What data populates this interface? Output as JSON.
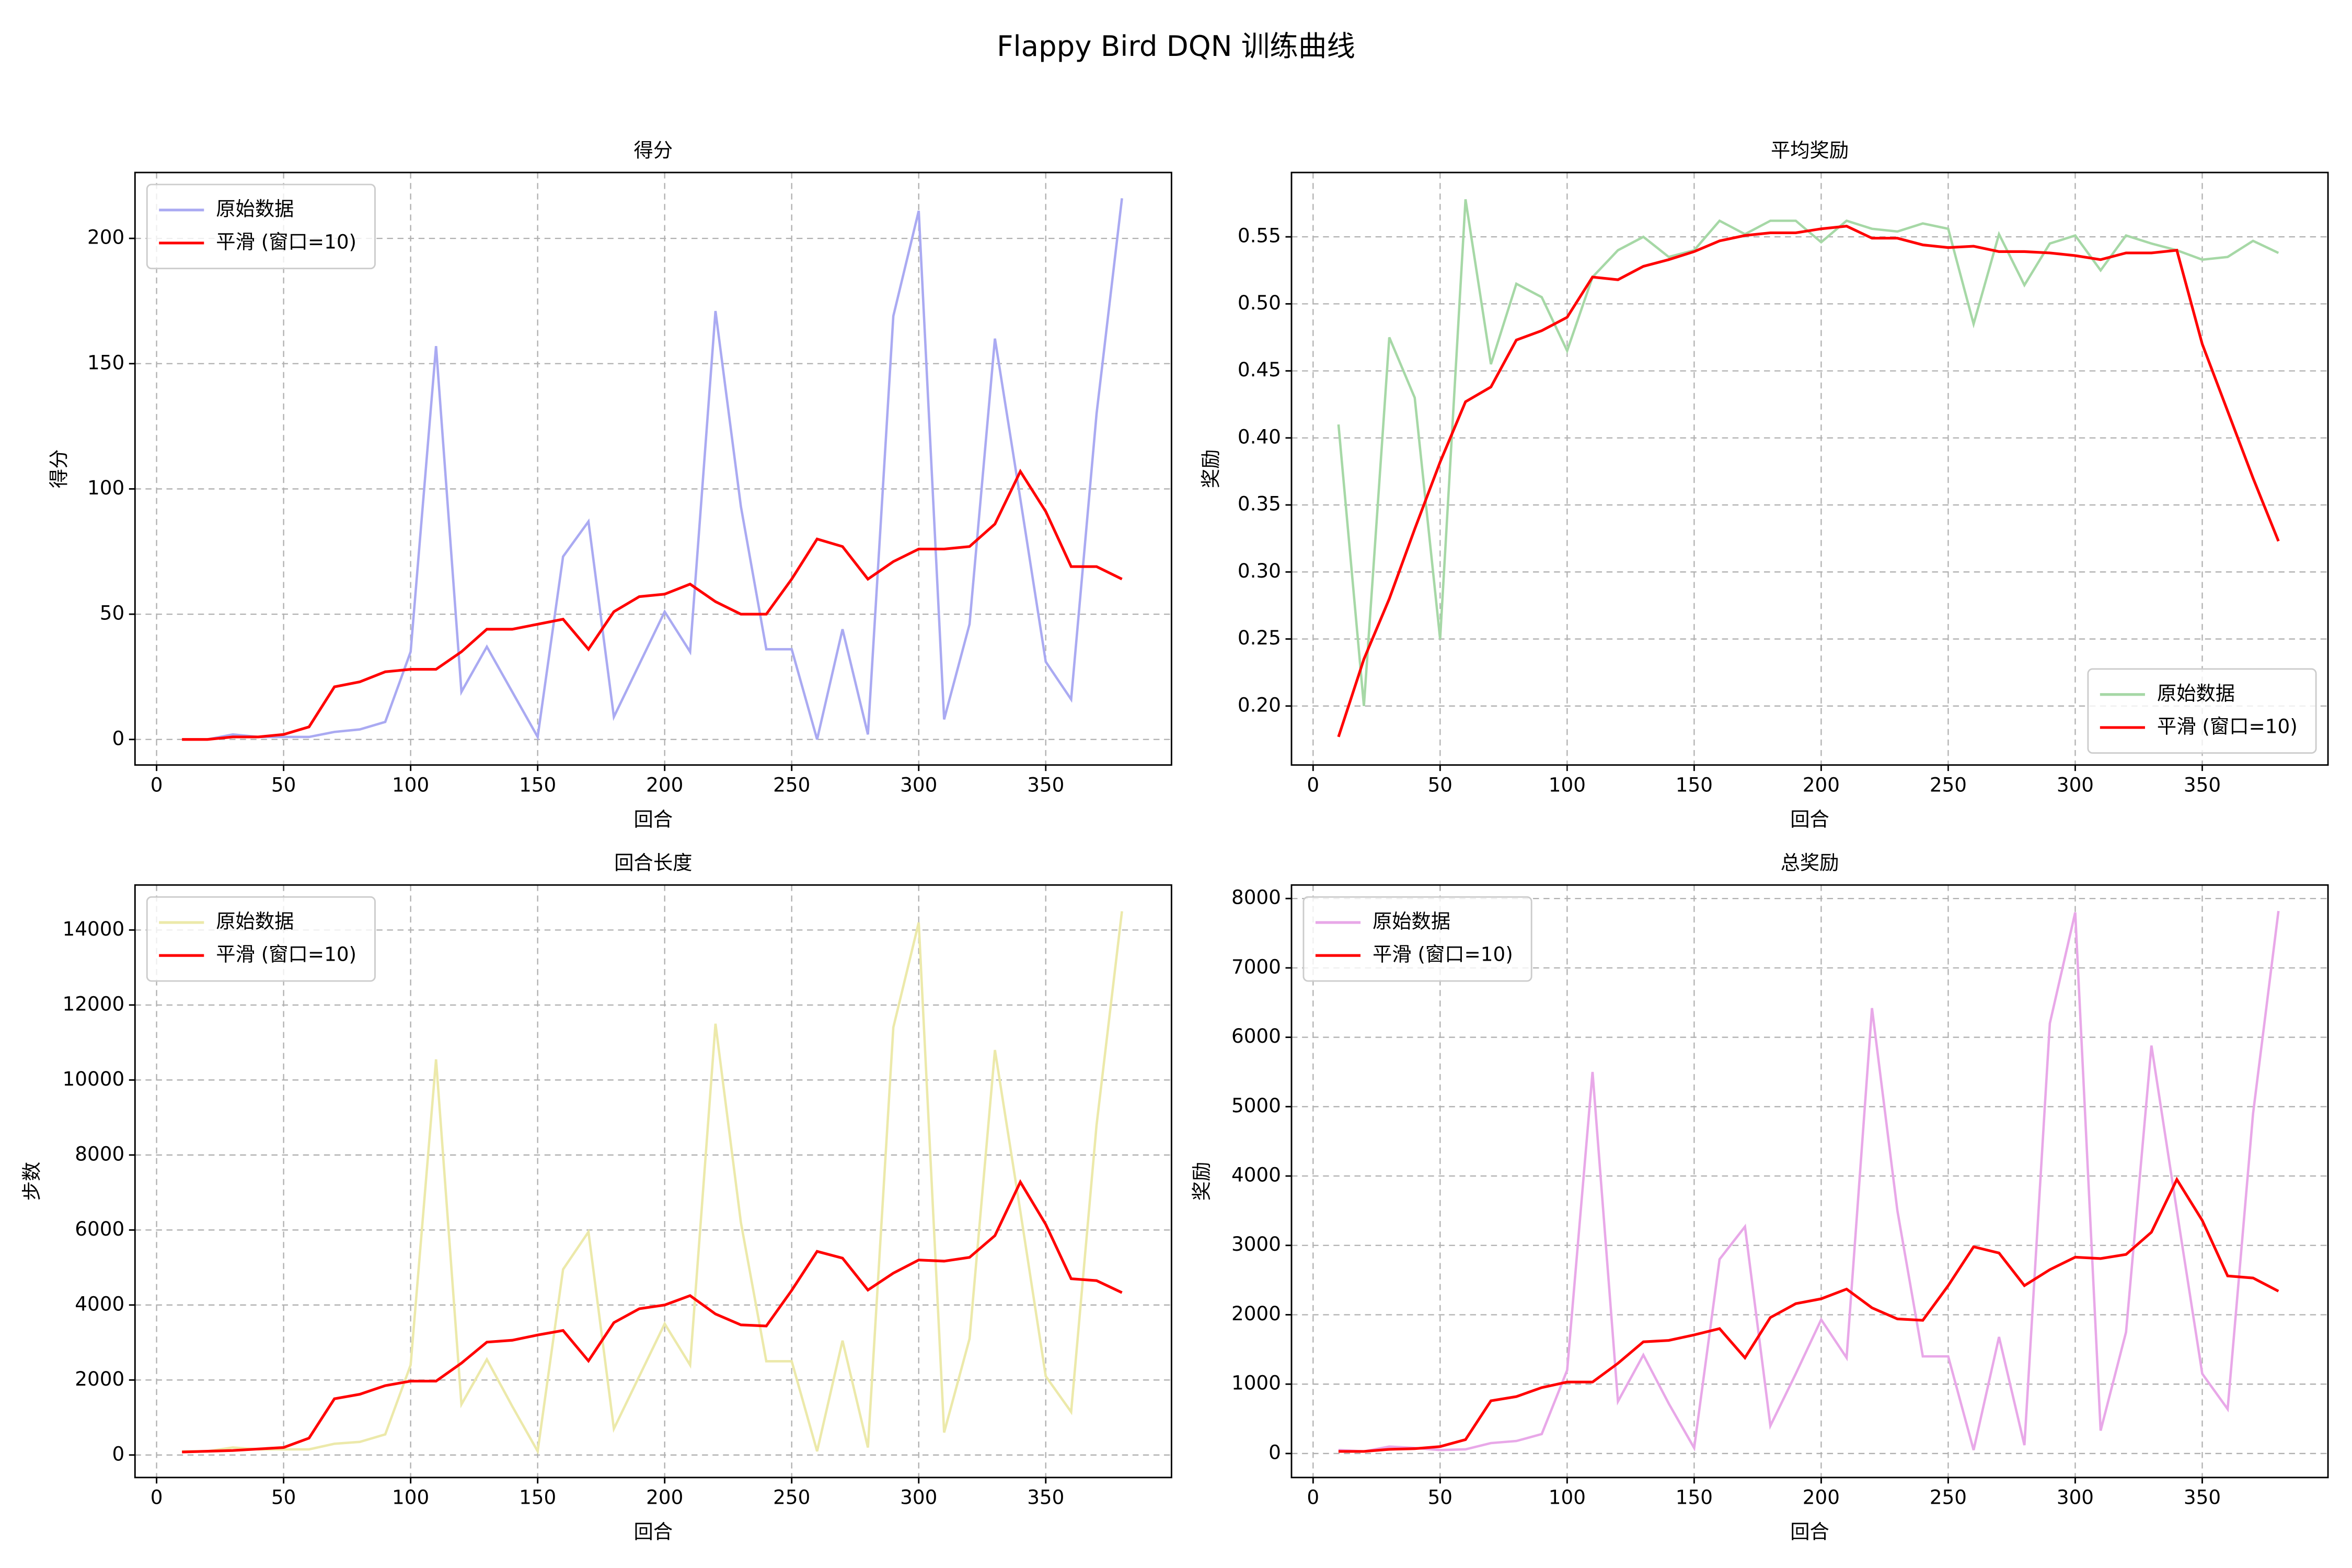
{
  "title": "Flappy Bird DQN 训练曲线",
  "chart_data": [
    {
      "type": "line",
      "title": "得分",
      "xlabel": "回合",
      "ylabel": "得分",
      "x": [
        10,
        20,
        30,
        40,
        50,
        60,
        70,
        80,
        90,
        100,
        110,
        120,
        130,
        140,
        150,
        160,
        170,
        180,
        190,
        200,
        210,
        220,
        230,
        240,
        250,
        260,
        270,
        280,
        290,
        300,
        310,
        320,
        330,
        340,
        350,
        360,
        370,
        380
      ],
      "series": [
        {
          "name": "原始数据",
          "color": "#aaaaf2",
          "values": [
            0,
            0,
            2,
            1,
            1,
            1,
            3,
            4,
            7,
            35,
            157,
            19,
            37,
            19,
            1,
            73,
            87,
            9,
            30,
            51,
            35,
            171,
            93,
            36,
            36,
            0,
            44,
            2,
            169,
            211,
            8,
            46,
            160,
            96,
            31,
            16,
            130,
            216
          ]
        },
        {
          "name": "平滑 (窗口=10)",
          "color": "#ff0000",
          "values": [
            0,
            0,
            1,
            1,
            2,
            5,
            21,
            23,
            27,
            28,
            28,
            35,
            44,
            44,
            46,
            48,
            36,
            51,
            57,
            58,
            62,
            55,
            50,
            50,
            64,
            80,
            77,
            64,
            71,
            76,
            76,
            77,
            86,
            107,
            91,
            69,
            69,
            64
          ]
        }
      ],
      "xlim": [
        -8.5,
        399.5
      ],
      "ylim": [
        -10.2,
        226.3
      ],
      "xticks": [
        0,
        50,
        100,
        150,
        200,
        250,
        300,
        350
      ],
      "yticks": [
        0,
        50,
        100,
        150,
        200
      ],
      "grid": true,
      "legend": "upper left"
    },
    {
      "type": "line",
      "title": "平均奖励",
      "xlabel": "回合",
      "ylabel": "奖励",
      "x": [
        10,
        20,
        30,
        40,
        50,
        60,
        70,
        80,
        90,
        100,
        110,
        120,
        130,
        140,
        150,
        160,
        170,
        180,
        190,
        200,
        210,
        220,
        230,
        240,
        250,
        260,
        270,
        280,
        290,
        300,
        310,
        320,
        330,
        340,
        350,
        360,
        370,
        380
      ],
      "series": [
        {
          "name": "原始数据",
          "color": "#a6d8a6",
          "values": [
            0.41,
            0.2,
            0.475,
            0.43,
            0.25,
            0.578,
            0.455,
            0.515,
            0.505,
            0.465,
            0.52,
            0.54,
            0.55,
            0.535,
            0.54,
            0.562,
            0.552,
            0.562,
            0.562,
            0.546,
            0.562,
            0.556,
            0.554,
            0.56,
            0.556,
            0.485,
            0.552,
            0.514,
            0.545,
            0.551,
            0.525,
            0.551,
            0.545,
            0.54,
            0.533,
            0.535,
            0.547,
            0.538
          ]
        },
        {
          "name": "平滑 (窗口=10)",
          "color": "#ff0000",
          "values": [
            0.177,
            0.235,
            0.28,
            0.332,
            0.382,
            0.427,
            0.438,
            0.473,
            0.48,
            0.49,
            0.52,
            0.518,
            0.528,
            0.533,
            0.539,
            0.547,
            0.551,
            0.553,
            0.553,
            0.556,
            0.558,
            0.549,
            0.549,
            0.544,
            0.542,
            0.543,
            0.539,
            0.539,
            0.538,
            0.536,
            0.533,
            0.538,
            0.538,
            0.54,
            0.47,
            0.42,
            0.37,
            0.323
          ]
        }
      ],
      "xlim": [
        -8.5,
        399.5
      ],
      "ylim": [
        0.156,
        0.598
      ],
      "xticks": [
        0,
        50,
        100,
        150,
        200,
        250,
        300,
        350
      ],
      "yticks": [
        {
          "value": 0.2,
          "label": "0.20"
        },
        0.25,
        {
          "value": 0.3,
          "label": "0.30"
        },
        0.35,
        {
          "value": 0.4,
          "label": "0.40"
        },
        0.45,
        {
          "value": 0.5,
          "label": "0.50"
        },
        0.55
      ],
      "grid": true,
      "legend": "lower right"
    },
    {
      "type": "line",
      "title": "回合长度",
      "xlabel": "回合",
      "ylabel": "步数",
      "x": [
        10,
        20,
        30,
        40,
        50,
        60,
        70,
        80,
        90,
        100,
        110,
        120,
        130,
        140,
        150,
        160,
        170,
        180,
        190,
        200,
        210,
        220,
        230,
        240,
        250,
        260,
        270,
        280,
        290,
        300,
        310,
        320,
        330,
        340,
        350,
        360,
        370,
        380
      ],
      "series": [
        {
          "name": "原始数据",
          "color": "#ece9aa",
          "values": [
            100,
            100,
            200,
            150,
            150,
            150,
            300,
            350,
            550,
            2400,
            10550,
            1350,
            2550,
            1300,
            100,
            4950,
            5950,
            700,
            2100,
            3500,
            2400,
            11500,
            6200,
            2500,
            2500,
            100,
            3050,
            200,
            11400,
            14200,
            600,
            3100,
            10800,
            6500,
            2100,
            1150,
            8800,
            14500
          ]
        },
        {
          "name": "平滑 (窗口=10)",
          "color": "#ff0000",
          "values": [
            80,
            100,
            120,
            160,
            200,
            450,
            1500,
            1620,
            1850,
            1970,
            1970,
            2450,
            3010,
            3060,
            3200,
            3320,
            2510,
            3530,
            3900,
            4000,
            4250,
            3760,
            3470,
            3440,
            4390,
            5430,
            5250,
            4400,
            4850,
            5200,
            5170,
            5270,
            5850,
            7280,
            6150,
            4700,
            4650,
            4330
          ]
        }
      ],
      "xlim": [
        -8.5,
        399.5
      ],
      "ylim": [
        -600,
        15200
      ],
      "xticks": [
        0,
        50,
        100,
        150,
        200,
        250,
        300,
        350
      ],
      "yticks": [
        0,
        2000,
        4000,
        6000,
        8000,
        10000,
        12000,
        14000
      ],
      "grid": true,
      "legend": "upper left"
    },
    {
      "type": "line",
      "title": "总奖励",
      "xlabel": "回合",
      "ylabel": "奖励",
      "x": [
        10,
        20,
        30,
        40,
        50,
        60,
        70,
        80,
        90,
        100,
        110,
        120,
        130,
        140,
        150,
        160,
        170,
        180,
        190,
        200,
        210,
        220,
        230,
        240,
        250,
        260,
        270,
        280,
        290,
        300,
        310,
        320,
        330,
        340,
        350,
        360,
        370,
        380
      ],
      "series": [
        {
          "name": "原始数据",
          "color": "#e8a8e8",
          "values": [
            50,
            30,
            100,
            80,
            50,
            60,
            150,
            180,
            280,
            1200,
            5500,
            750,
            1420,
            720,
            80,
            2800,
            3270,
            400,
            1150,
            1930,
            1380,
            6420,
            3500,
            1400,
            1400,
            50,
            1680,
            120,
            6200,
            7800,
            330,
            1750,
            5880,
            3500,
            1150,
            640,
            4900,
            7820
          ]
        },
        {
          "name": "平滑 (窗口=10)",
          "color": "#ff0000",
          "values": [
            30,
            30,
            60,
            70,
            100,
            200,
            760,
            820,
            950,
            1030,
            1030,
            1300,
            1610,
            1630,
            1710,
            1800,
            1380,
            1960,
            2160,
            2230,
            2370,
            2100,
            1940,
            1920,
            2420,
            2980,
            2890,
            2420,
            2650,
            2830,
            2810,
            2870,
            3190,
            3950,
            3360,
            2560,
            2530,
            2340
          ]
        }
      ],
      "xlim": [
        -8.5,
        399.5
      ],
      "ylim": [
        -346,
        8195
      ],
      "xticks": [
        0,
        50,
        100,
        150,
        200,
        250,
        300,
        350
      ],
      "yticks": [
        0,
        1000,
        2000,
        3000,
        4000,
        5000,
        6000,
        7000,
        8000
      ],
      "grid": true,
      "legend": "upper left"
    }
  ]
}
